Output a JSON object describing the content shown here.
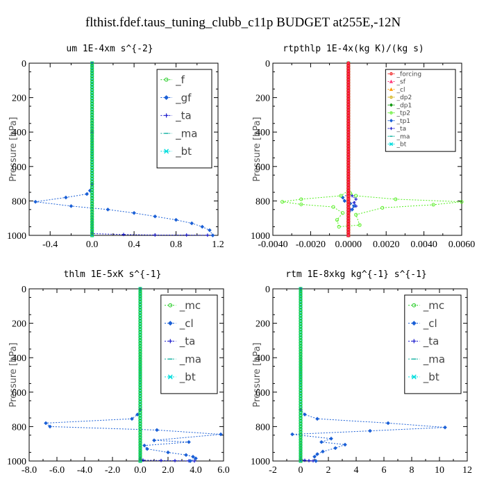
{
  "figure": {
    "title": "flthist.fdef.taus_tuning_clubb_c11p  BUDGET at255E,-12N"
  },
  "colors": {
    "green": "#22cc22",
    "blue": "#1a5fd6",
    "navy": "#1818cc",
    "teal": "#10b0a0",
    "cyan": "#00dddd",
    "red": "#ee1111",
    "pink": "#ff3377",
    "orange": "#ff9900",
    "gold": "#ccaa00",
    "dkgreen": "#119911",
    "lime": "#55ee22"
  },
  "chart_data": [
    {
      "type": "line",
      "title": "um  1E-4xm s^{-2}",
      "ylabel": "Pressure [hPa]",
      "xlim": [
        -0.6,
        1.2
      ],
      "ylim": [
        1000,
        0
      ],
      "xticks": [
        "-0.4",
        "0.0",
        "0.4",
        "0.8",
        "1.2"
      ],
      "xtick_values": [
        -0.4,
        0,
        0.4,
        0.8,
        1.2
      ],
      "yticks": [
        "0",
        "200",
        "400",
        "600",
        "800",
        "1000"
      ],
      "ytick_values": [
        0,
        200,
        400,
        600,
        800,
        1000
      ],
      "legend": {
        "position": "top-right",
        "font": 15,
        "width_frac": 0.29
      },
      "series": [
        {
          "name": "_f",
          "color": "green",
          "marker": "circle",
          "x": [
            0,
            0,
            0,
            0,
            0
          ],
          "y": [
            0,
            250,
            500,
            750,
            1000
          ]
        },
        {
          "name": "_gf",
          "color": "blue",
          "marker": "diamond",
          "x": [
            0,
            0,
            0,
            -0.02,
            -0.05,
            -0.25,
            -0.54,
            -0.2,
            0.15,
            0.4,
            0.6,
            0.8,
            0.95,
            1.05,
            1.12,
            1.15
          ],
          "y": [
            0,
            400,
            700,
            740,
            760,
            780,
            805,
            830,
            850,
            870,
            890,
            910,
            930,
            950,
            970,
            1000
          ]
        },
        {
          "name": "_ta",
          "color": "navy",
          "marker": "plus",
          "x": [
            0,
            0,
            0.3,
            0.6,
            0.9,
            1.1,
            1.15
          ],
          "y": [
            0,
            990,
            995,
            998,
            998,
            999,
            1000
          ]
        },
        {
          "name": "_ma",
          "color": "teal",
          "marker": "dash",
          "x": [
            0,
            0
          ],
          "y": [
            0,
            1000
          ]
        },
        {
          "name": "_bt",
          "color": "cyan",
          "marker": "cross",
          "x": [
            0,
            0
          ],
          "y": [
            0,
            1000
          ]
        }
      ]
    },
    {
      "type": "line",
      "title": "rtpthlp  1E-4x(kg K)/(kg s)",
      "ylabel": "Pressure [hPa]",
      "xlim": [
        -0.004,
        0.006
      ],
      "ylim": [
        1000,
        0
      ],
      "xticks": [
        "-0.0040",
        "-0.0020",
        "0.0000",
        "0.0020",
        "0.0040",
        "0.0060"
      ],
      "xtick_values": [
        -0.004,
        -0.002,
        0,
        0.002,
        0.004,
        0.006
      ],
      "yticks": [
        "0",
        "200",
        "400",
        "600",
        "800",
        "1000"
      ],
      "ytick_values": [
        0,
        200,
        400,
        600,
        800,
        1000
      ],
      "legend": {
        "position": "top-right",
        "font": 9,
        "width_frac": 0.37
      },
      "series": [
        {
          "name": "_forcing",
          "color": "red",
          "marker": "circle",
          "x": [
            0,
            0
          ],
          "y": [
            0,
            1000
          ]
        },
        {
          "name": "_sf",
          "color": "pink",
          "marker": "tri",
          "x": [
            0,
            0
          ],
          "y": [
            0,
            1000
          ]
        },
        {
          "name": "_cl",
          "color": "orange",
          "marker": "tri",
          "x": [
            0,
            0
          ],
          "y": [
            0,
            1000
          ]
        },
        {
          "name": "_dp2",
          "color": "gold",
          "marker": "circle",
          "x": [
            0,
            0
          ],
          "y": [
            0,
            1000
          ]
        },
        {
          "name": "_dp1",
          "color": "dkgreen",
          "marker": "diamond",
          "x": [
            0,
            0
          ],
          "y": [
            0,
            1000
          ]
        },
        {
          "name": "_tp2",
          "color": "lime",
          "marker": "circle",
          "x": [
            0,
            0,
            -0.0004,
            -0.0025,
            -0.0035,
            -0.0025,
            -0.0008,
            -0.0003,
            -0.0006,
            -0.0005,
            0.0006,
            0.0004,
            0.0018,
            0.0045,
            0.006,
            0.0025,
            0.0004,
            0.0001,
            0
          ],
          "y": [
            0,
            740,
            770,
            790,
            805,
            820,
            835,
            870,
            910,
            950,
            940,
            880,
            840,
            822,
            805,
            790,
            770,
            755,
            740
          ]
        },
        {
          "name": "_tp1",
          "color": "blue",
          "marker": "diamond",
          "x": [
            0,
            0,
            -0.0003,
            -0.0002,
            0.0001,
            0.0003,
            0.0002,
            0
          ],
          "y": [
            0,
            760,
            780,
            800,
            815,
            830,
            850,
            880
          ]
        },
        {
          "name": "_ta",
          "color": "navy",
          "marker": "plus",
          "x": [
            0,
            0,
            0.0002,
            0.0004,
            0.0003,
            0.0004,
            0.0001,
            0
          ],
          "y": [
            0,
            750,
            770,
            790,
            810,
            830,
            850,
            870
          ]
        },
        {
          "name": "_ma",
          "color": "teal",
          "marker": "dash",
          "x": [
            0,
            0
          ],
          "y": [
            0,
            1000
          ]
        },
        {
          "name": "_bt",
          "color": "cyan",
          "marker": "cross",
          "x": [
            0,
            0
          ],
          "y": [
            0,
            1000
          ]
        }
      ]
    },
    {
      "type": "line",
      "title": "thlm  1E-5xK s^{-1}",
      "ylabel": "Pressure [hPa]",
      "xlim": [
        -8,
        6
      ],
      "ylim": [
        1000,
        0
      ],
      "xticks": [
        "-8.0",
        "-6.0",
        "-4.0",
        "-2.0",
        "0.0",
        "2.0",
        "4.0",
        "6.0"
      ],
      "xtick_values": [
        -8,
        -6,
        -4,
        -2,
        0,
        2,
        4,
        6
      ],
      "yticks": [
        "0",
        "200",
        "400",
        "600",
        "800",
        "1000"
      ],
      "ytick_values": [
        0,
        200,
        400,
        600,
        800,
        1000
      ],
      "legend": {
        "position": "top-right",
        "font": 15,
        "width_frac": 0.29
      },
      "series": [
        {
          "name": "_mc",
          "color": "green",
          "marker": "circle",
          "x": [
            0,
            0,
            0,
            0,
            0
          ],
          "y": [
            0,
            250,
            500,
            750,
            1000
          ]
        },
        {
          "name": "_cl",
          "color": "blue",
          "marker": "diamond",
          "x": [
            0,
            0,
            -0.2,
            -0.6,
            -6.8,
            -6.5,
            1.2,
            5.8,
            1.0,
            3.5,
            0.3,
            0.5,
            2.0,
            3.3,
            3.8,
            4.0,
            3.6
          ],
          "y": [
            0,
            700,
            730,
            755,
            780,
            800,
            820,
            845,
            880,
            890,
            910,
            930,
            950,
            965,
            975,
            985,
            1000
          ]
        },
        {
          "name": "_ta",
          "color": "navy",
          "marker": "plus",
          "x": [
            0,
            0,
            0.2,
            1.5,
            2.5,
            3.5,
            3.9
          ],
          "y": [
            0,
            990,
            995,
            997,
            998,
            999,
            1000
          ]
        },
        {
          "name": "_ma",
          "color": "teal",
          "marker": "dash",
          "x": [
            0,
            0
          ],
          "y": [
            0,
            1000
          ]
        },
        {
          "name": "_bt",
          "color": "cyan",
          "marker": "cross",
          "x": [
            0,
            0
          ],
          "y": [
            0,
            1000
          ]
        }
      ]
    },
    {
      "type": "line",
      "title": "rtm  1E-8xkg kg^{-1} s^{-1}",
      "ylabel": "Pressure [hPa]",
      "xlim": [
        -2,
        12
      ],
      "ylim": [
        1000,
        0
      ],
      "xticks": [
        "-2",
        "0",
        "2",
        "4",
        "6",
        "8",
        "10",
        "12"
      ],
      "xtick_values": [
        -2,
        0,
        2,
        4,
        6,
        8,
        10,
        12
      ],
      "yticks": [
        "0",
        "200",
        "400",
        "600",
        "800",
        "1000"
      ],
      "ytick_values": [
        0,
        200,
        400,
        600,
        800,
        1000
      ],
      "legend": {
        "position": "top-right",
        "font": 15,
        "width_frac": 0.29
      },
      "series": [
        {
          "name": "_mc",
          "color": "green",
          "marker": "circle",
          "x": [
            0,
            0,
            0,
            0,
            0
          ],
          "y": [
            0,
            250,
            500,
            750,
            1000
          ]
        },
        {
          "name": "_cl",
          "color": "blue",
          "marker": "diamond",
          "x": [
            0,
            0,
            0.3,
            1.2,
            6.3,
            10.4,
            5.0,
            -0.6,
            2.2,
            1.5,
            3.2,
            2.5,
            1.6,
            1.2,
            1.0,
            1.1
          ],
          "y": [
            0,
            700,
            730,
            755,
            780,
            805,
            825,
            845,
            870,
            890,
            905,
            925,
            945,
            960,
            975,
            1000
          ]
        },
        {
          "name": "_ta",
          "color": "navy",
          "marker": "plus",
          "x": [
            0,
            0,
            0.3,
            0.6,
            0.9,
            1.1
          ],
          "y": [
            0,
            992,
            996,
            998,
            999,
            1000
          ]
        },
        {
          "name": "_ma",
          "color": "teal",
          "marker": "dash",
          "x": [
            0,
            0
          ],
          "y": [
            0,
            1000
          ]
        },
        {
          "name": "_bt",
          "color": "cyan",
          "marker": "cross",
          "x": [
            0,
            0
          ],
          "y": [
            0,
            1000
          ]
        }
      ]
    }
  ]
}
